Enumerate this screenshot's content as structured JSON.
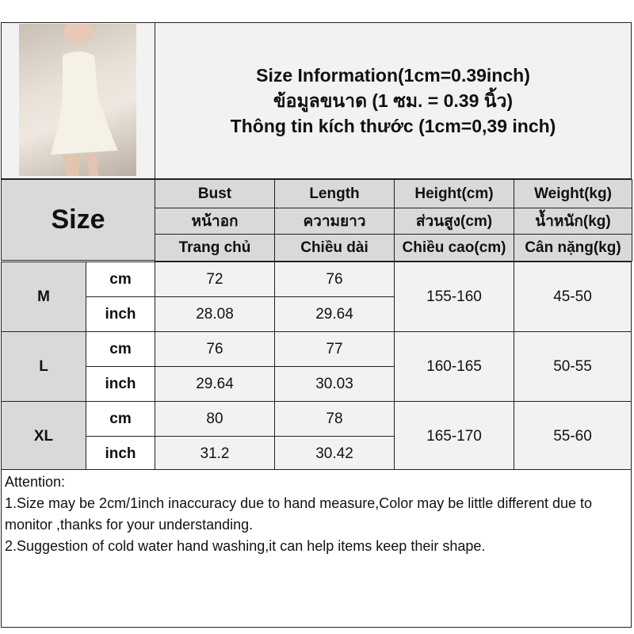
{
  "title": {
    "line1": "Size Information(1cm=0.39inch)",
    "line2": "ข้อมูลขนาด (1 ซม. = 0.39 นิ้ว)",
    "line3": "Thông tin kích thước (1cm=0,39 inch)"
  },
  "size_label": "Size",
  "columns": [
    {
      "en": "Bust",
      "th": "หน้าอก",
      "vi": "Trang chủ"
    },
    {
      "en": "Length",
      "th": "ความยาว",
      "vi": "Chiều dài"
    },
    {
      "en": "Height(cm)",
      "th": "ส่วนสูง(cm)",
      "vi": "Chiều cao(cm)"
    },
    {
      "en": "Weight(kg)",
      "th": "น้ำหนัก(kg)",
      "vi": "Cân nặng(kg)"
    }
  ],
  "rows": [
    {
      "size": "M",
      "cm": {
        "unit": "cm",
        "bust": "72",
        "length": "76"
      },
      "inch": {
        "unit": "inch",
        "bust": "28.08",
        "length": "29.64"
      },
      "height": "155-160",
      "weight": "45-50"
    },
    {
      "size": "L",
      "cm": {
        "unit": "cm",
        "bust": "76",
        "length": "77"
      },
      "inch": {
        "unit": "inch",
        "bust": "29.64",
        "length": "30.03"
      },
      "height": "160-165",
      "weight": "50-55"
    },
    {
      "size": "XL",
      "cm": {
        "unit": "cm",
        "bust": "80",
        "length": "78"
      },
      "inch": {
        "unit": "inch",
        "bust": "31.2",
        "length": "30.42"
      },
      "height": "165-170",
      "weight": "55-60"
    }
  ],
  "attention": {
    "heading": "Attention:",
    "note1": "1.Size may be 2cm/1inch inaccuracy due to hand measure,Color may be little different due to monitor ,thanks for your understanding.",
    "note2": "2.Suggestion of cold water hand washing,it can help items keep their shape."
  }
}
